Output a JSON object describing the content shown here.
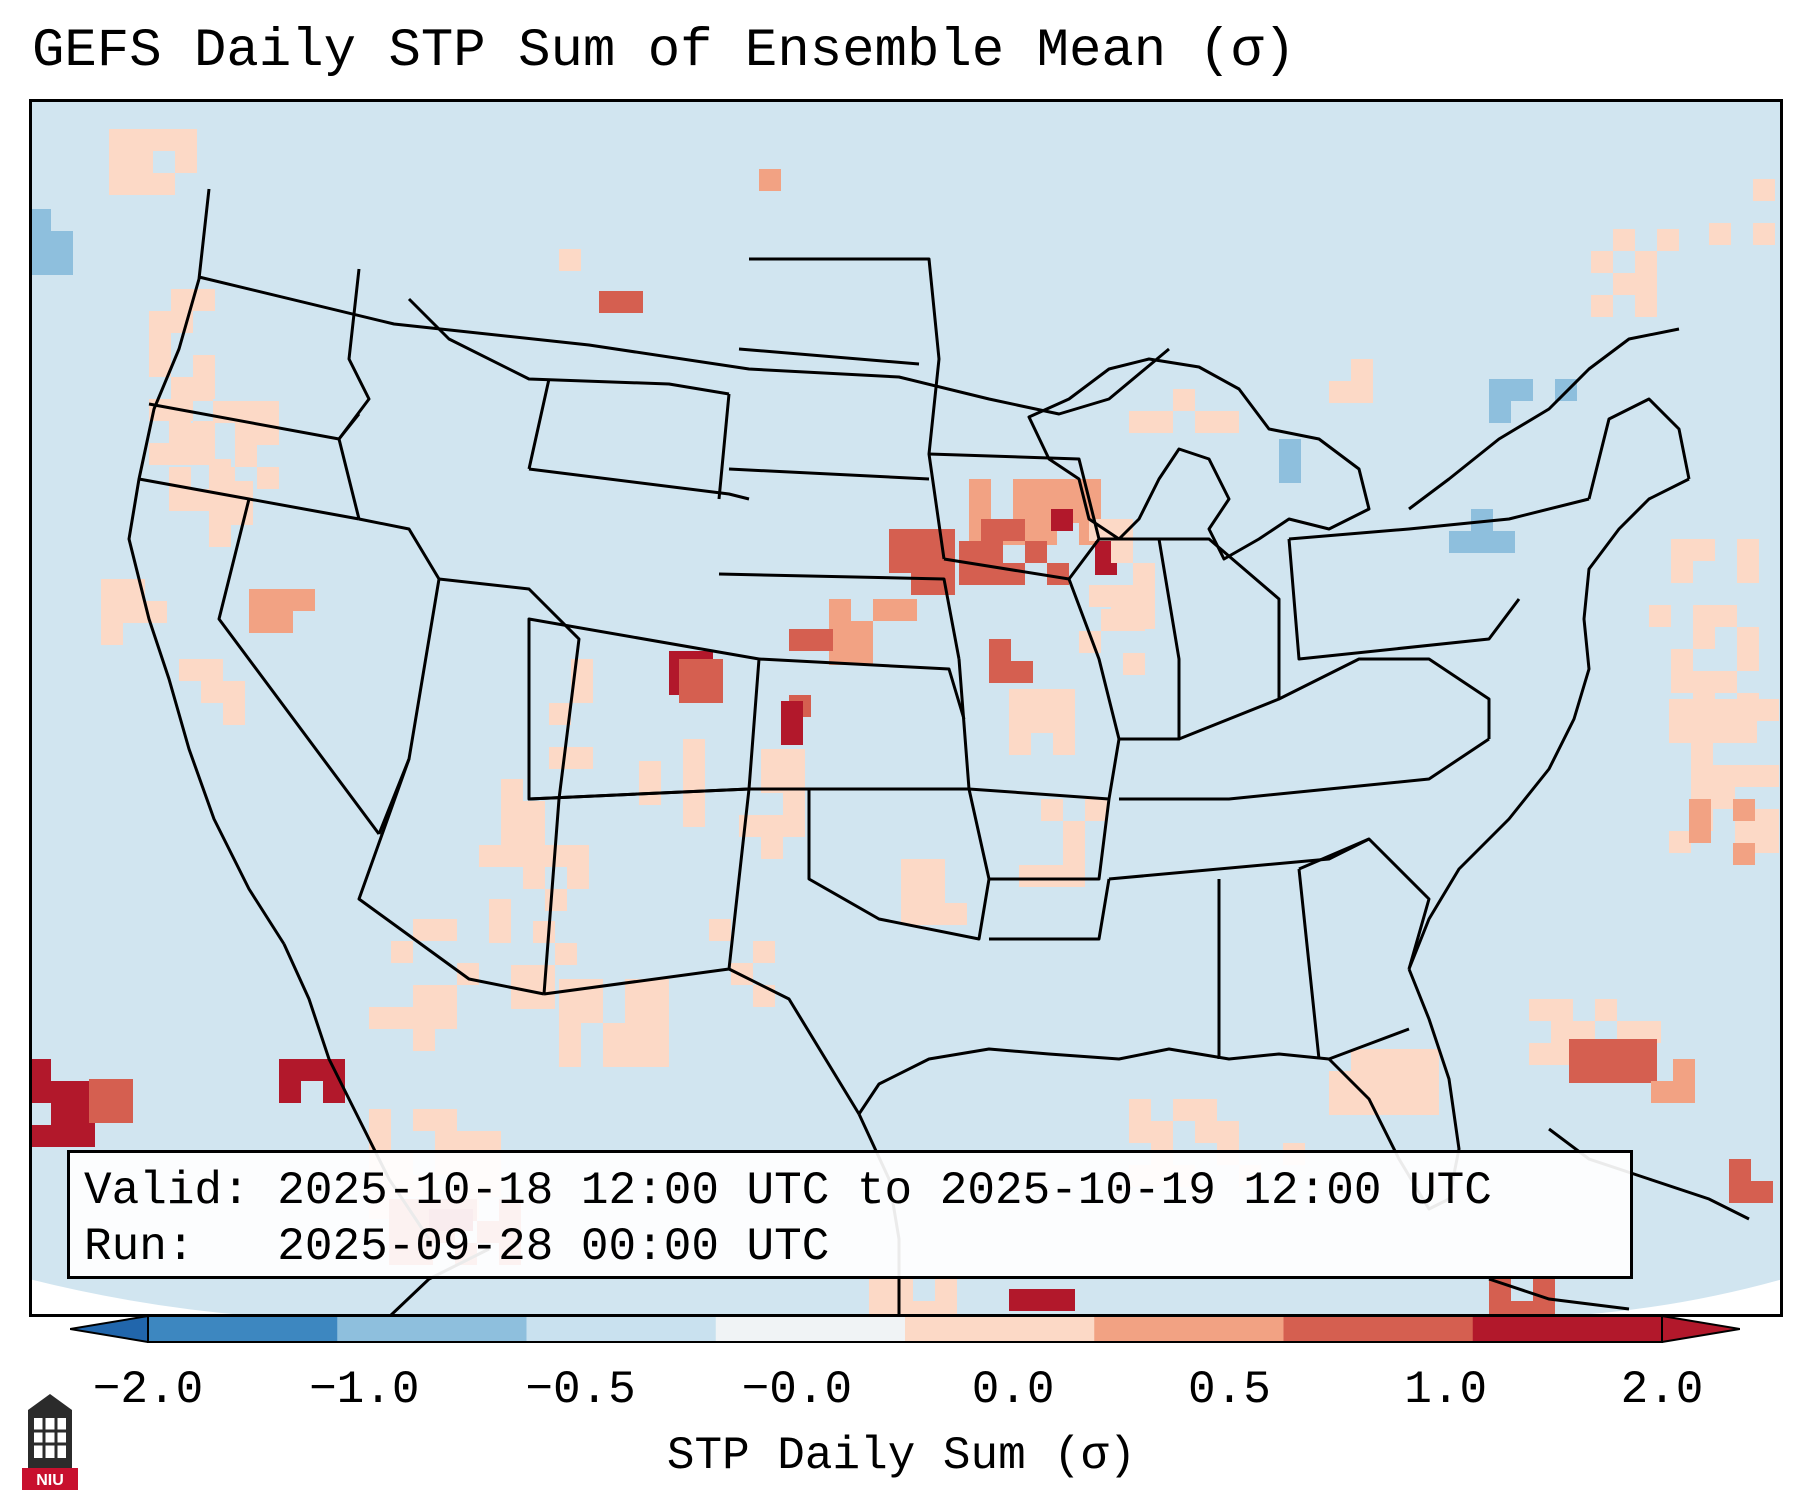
{
  "title": "GEFS Daily STP Sum of Ensemble Mean (σ)",
  "info": {
    "valid_label": "Valid:",
    "valid_value": "2025-10-18 12:00 UTC to 2025-10-19 12:00 UTC",
    "run_label": "Run:",
    "run_value": "2025-09-28 00:00 UTC"
  },
  "colorbar": {
    "label": "STP Daily Sum (σ)",
    "ticks": [
      "−2.0",
      "−1.0",
      "−0.5",
      "−0.0",
      "0.0",
      "0.5",
      "1.0",
      "2.0"
    ],
    "bin_colors": [
      "#3d87c0",
      "#8ebfdd",
      "#c9e1ef",
      "#f0f3f5",
      "#fcd9c6",
      "#f2a283",
      "#d55f50",
      "#b2182b"
    ],
    "extend_low_color": "#2166ac",
    "extend_high_color": "#b2182b"
  },
  "map": {
    "background_color": "#d1e5f0",
    "outline_color": "#000000"
  },
  "logo": {
    "text": "NIU"
  }
}
